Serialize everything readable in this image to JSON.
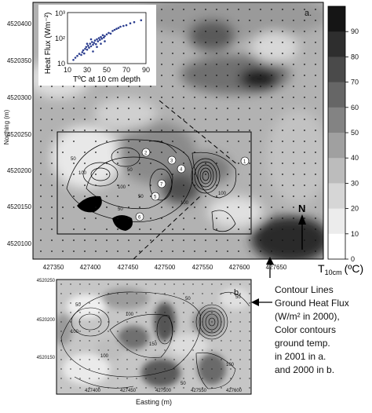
{
  "panel_a": {
    "label": "a.",
    "y_axis_label": "Northing (m)",
    "y_ticks": [
      "4520400",
      "4520350",
      "4520300",
      "4520250",
      "4520200",
      "4520150",
      "4520100"
    ],
    "x_ticks": [
      "427350",
      "427400",
      "427450",
      "427500",
      "427550",
      "427600",
      "427650"
    ],
    "site_labels": [
      "1",
      "2",
      "3",
      "4",
      "5",
      "6",
      "7"
    ]
  },
  "panel_b": {
    "label": "b.",
    "x_axis_label": "Easting (m)",
    "y_ticks": [
      "4520250",
      "4520200",
      "4520150"
    ],
    "x_ticks": [
      "427400",
      "427450",
      "427500",
      "427550",
      "427600"
    ],
    "contour_labels": [
      "50",
      "100",
      "50",
      "100",
      "150",
      "100",
      "50",
      "100",
      "50"
    ]
  },
  "contour_labels_a": [
    "50",
    "100",
    "50",
    "100",
    "50",
    "100",
    "50",
    "100"
  ],
  "colorbar": {
    "ticks": [
      "90",
      "80",
      "70",
      "60",
      "50",
      "40",
      "30",
      "20",
      "10",
      "0"
    ],
    "label": "T",
    "label_sub": "10cm",
    "label_unit": "(ºC)",
    "colors": [
      "#151515",
      "#2e2e2e",
      "#4a4a4a",
      "#666666",
      "#838383",
      "#a0a0a0",
      "#bcbcbc",
      "#d6d6d6",
      "#ececec",
      "#ffffff"
    ]
  },
  "north_label": "N",
  "notes": [
    "Contour Lines",
    "Ground Heat Flux",
    "(W/m² in 2000),",
    "Color contours",
    "ground temp.",
    "in 2001 in a.",
    "and 2000 in b."
  ],
  "chart_data": {
    "type": "scatter",
    "xlabel": "TºC at 10 cm depth",
    "ylabel": "Heat Flux (Wm⁻²)",
    "xlim": [
      10,
      90
    ],
    "ylim": [
      10,
      1000
    ],
    "y_scale": "log",
    "x_ticks": [
      "10",
      "30",
      "50",
      "70",
      "90"
    ],
    "y_ticks": [
      "10",
      "10²",
      "10³"
    ],
    "points": [
      {
        "x": 16,
        "y": 14
      },
      {
        "x": 18,
        "y": 17
      },
      {
        "x": 20,
        "y": 20
      },
      {
        "x": 22,
        "y": 24
      },
      {
        "x": 24,
        "y": 22
      },
      {
        "x": 25,
        "y": 28
      },
      {
        "x": 26,
        "y": 33
      },
      {
        "x": 27,
        "y": 25
      },
      {
        "x": 28,
        "y": 38
      },
      {
        "x": 29,
        "y": 45
      },
      {
        "x": 30,
        "y": 35
      },
      {
        "x": 31,
        "y": 50
      },
      {
        "x": 32,
        "y": 42
      },
      {
        "x": 33,
        "y": 60
      },
      {
        "x": 34,
        "y": 48
      },
      {
        "x": 35,
        "y": 70
      },
      {
        "x": 36,
        "y": 55
      },
      {
        "x": 37,
        "y": 65
      },
      {
        "x": 38,
        "y": 80
      },
      {
        "x": 39,
        "y": 58
      },
      {
        "x": 40,
        "y": 90
      },
      {
        "x": 41,
        "y": 75
      },
      {
        "x": 42,
        "y": 100
      },
      {
        "x": 43,
        "y": 85
      },
      {
        "x": 44,
        "y": 110
      },
      {
        "x": 45,
        "y": 95
      },
      {
        "x": 46,
        "y": 130
      },
      {
        "x": 47,
        "y": 105
      },
      {
        "x": 48,
        "y": 120
      },
      {
        "x": 50,
        "y": 140
      },
      {
        "x": 52,
        "y": 160
      },
      {
        "x": 54,
        "y": 150
      },
      {
        "x": 56,
        "y": 190
      },
      {
        "x": 58,
        "y": 210
      },
      {
        "x": 60,
        "y": 230
      },
      {
        "x": 62,
        "y": 250
      },
      {
        "x": 64,
        "y": 280
      },
      {
        "x": 67,
        "y": 300
      },
      {
        "x": 70,
        "y": 320
      },
      {
        "x": 74,
        "y": 380
      },
      {
        "x": 78,
        "y": 420
      },
      {
        "x": 85,
        "y": 500
      },
      {
        "x": 36,
        "y": 30
      },
      {
        "x": 40,
        "y": 45
      },
      {
        "x": 44,
        "y": 60
      },
      {
        "x": 48,
        "y": 75
      },
      {
        "x": 30,
        "y": 60
      },
      {
        "x": 34,
        "y": 90
      }
    ]
  }
}
